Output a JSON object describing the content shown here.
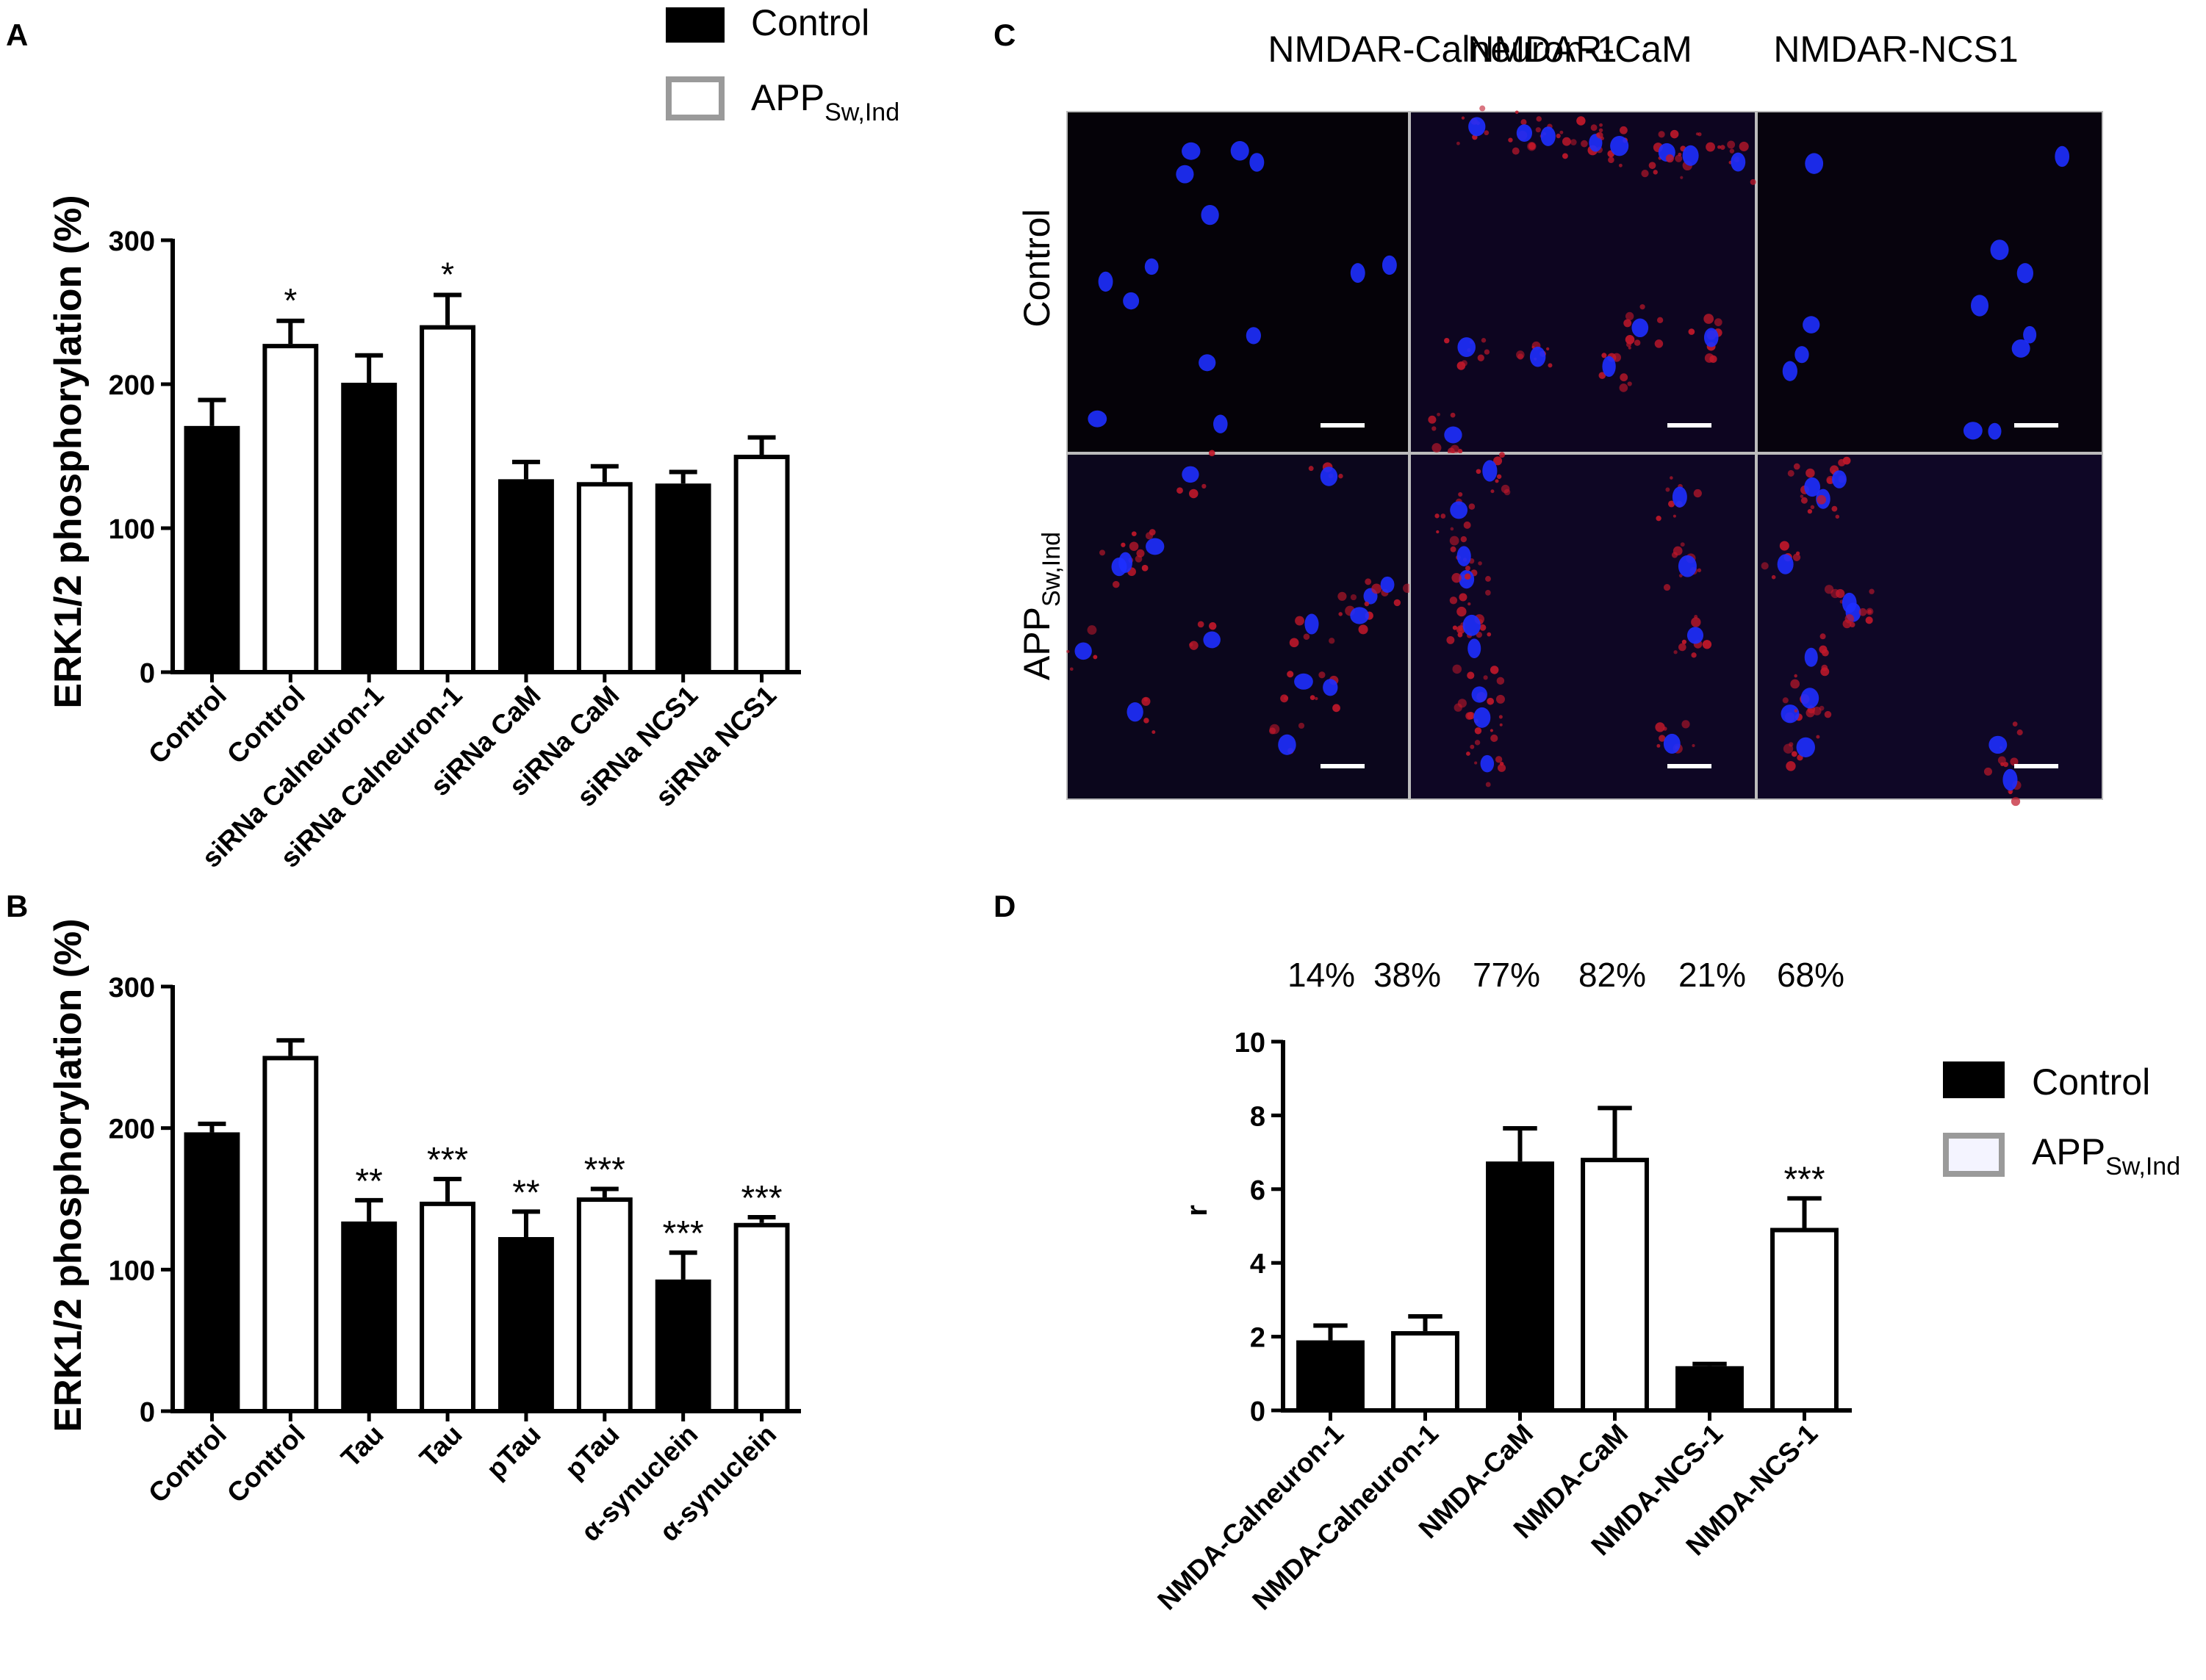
{
  "legend_top": {
    "items": [
      {
        "label": "Control",
        "fill": "#000000",
        "stroke": "#000000"
      },
      {
        "label": "APP",
        "sub": "Sw,Ind",
        "fill": "#ffffff",
        "stroke": "#9a9a9a"
      }
    ]
  },
  "legend_d": {
    "items": [
      {
        "label": "Control",
        "fill": "#000000",
        "stroke": "#000000"
      },
      {
        "label": "APP",
        "sub": "Sw,Ind",
        "fill": "#f4f4ff",
        "stroke": "#9a9a9a"
      }
    ]
  },
  "panel_c": {
    "letter": "C",
    "columns": [
      "NMDAR-Calneuron-1",
      "NMDAR-CaM",
      "NMDAR-NCS1"
    ],
    "rows": [
      {
        "label": "Control",
        "sub": ""
      },
      {
        "label": "APP",
        "sub": "Sw,Ind"
      }
    ]
  },
  "chart_data": [
    {
      "panel": "A",
      "type": "bar",
      "ylabel": "ERK1/2 phosphorylation (%)",
      "ylim": [
        0,
        300
      ],
      "yticks": [
        0,
        100,
        200,
        300
      ],
      "categories": [
        "Control",
        "Control",
        "siRNa Calneuron-1",
        "siRNa Calneuron-1",
        "siRNa CaM",
        "siRNa CaM",
        "siRNa NCS1",
        "siRNa NCS1"
      ],
      "groups": [
        "Control",
        "APPSw,Ind",
        "Control",
        "APPSw,Ind",
        "Control",
        "APPSw,Ind",
        "Control",
        "APPSw,Ind"
      ],
      "values": [
        171,
        228,
        201,
        241,
        134,
        132,
        131,
        151
      ],
      "errors": [
        18,
        16,
        19,
        21,
        12,
        11,
        8,
        12
      ],
      "annotations": [
        "",
        "*",
        "",
        "*",
        "",
        "",
        "",
        ""
      ]
    },
    {
      "panel": "B",
      "type": "bar",
      "ylabel": "ERK1/2 phosphorylation (%)",
      "ylim": [
        0,
        300
      ],
      "yticks": [
        0,
        100,
        200,
        300
      ],
      "categories": [
        "Control",
        "Control",
        "Tau",
        "Tau",
        "pTau",
        "pTau",
        "α-synuclein",
        "α-synuclein"
      ],
      "groups": [
        "Control",
        "APPSw,Ind",
        "Control",
        "APPSw,Ind",
        "Control",
        "APPSw,Ind",
        "Control",
        "APPSw,Ind"
      ],
      "values": [
        197,
        251,
        134,
        148,
        123,
        151,
        93,
        133
      ],
      "errors": [
        6,
        11,
        15,
        16,
        18,
        6,
        19,
        4
      ],
      "annotations": [
        "",
        "",
        "**",
        "***",
        "**",
        "***",
        "***",
        "***"
      ]
    },
    {
      "panel": "D",
      "type": "bar",
      "ylabel": "r",
      "ylim": [
        0,
        10
      ],
      "yticks": [
        0,
        2,
        4,
        6,
        8,
        10
      ],
      "categories": [
        "NMDA-Calneuron-1",
        "NMDA-Calneuron-1",
        "NMDA-CaM",
        "NMDA-CaM",
        "NMDA-NCS-1",
        "NMDA-NCS-1"
      ],
      "groups": [
        "Control",
        "APPSw,Ind",
        "Control",
        "APPSw,Ind",
        "Control",
        "APPSw,Ind"
      ],
      "values": [
        1.9,
        2.15,
        6.75,
        6.85,
        1.2,
        4.95
      ],
      "errors": [
        0.4,
        0.4,
        0.9,
        1.35,
        0.06,
        0.8
      ],
      "annotations": [
        "",
        "",
        "",
        "",
        "",
        "***"
      ],
      "top_labels": [
        "14%",
        "38%",
        "77%",
        "82%",
        "21%",
        "68%"
      ]
    }
  ]
}
